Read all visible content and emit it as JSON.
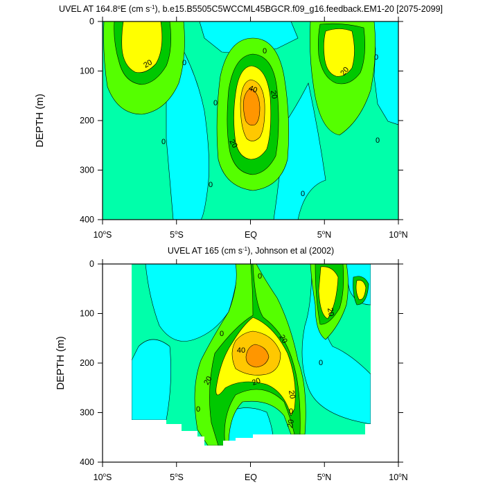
{
  "colors": {
    "lt0": "#00ffff",
    "c0_10": "#00ffaa",
    "c10_20": "#55ff00",
    "c20_30": "#00c800",
    "c30_40": "#ffff00",
    "c40_50": "#ffc800",
    "c50_60": "#ff9600",
    "contour": "#000000"
  },
  "chart_data": [
    {
      "type": "heatmap",
      "title": "UVEL AT 164.8°E (cm s⁻¹), b.e15.B5505C5WCCML45BGCR.f09_g16.feedback.EM1-20 [2075-2099]",
      "title_parts": {
        "pre": "UVEL AT 164.8",
        "deg": "o",
        "mid": "E (cm s",
        "exp": "-1",
        "post": "), b.e15.B5505C5WCCML45BGCR.f09_g16.feedback.EM1-20 [2075-2099]"
      },
      "ylabel": "DEPTH (m)",
      "xlim": [
        -10,
        10
      ],
      "ylim": [
        0,
        400
      ],
      "y_inverted": true,
      "xticks": [
        {
          "value": -10,
          "num": "10",
          "deg": "o",
          "hem": "S"
        },
        {
          "value": -5,
          "num": "5",
          "deg": "o",
          "hem": "S"
        },
        {
          "value": 0,
          "num": "EQ",
          "deg": "",
          "hem": ""
        },
        {
          "value": 5,
          "num": "5",
          "deg": "o",
          "hem": "N"
        },
        {
          "value": 10,
          "num": "10",
          "deg": "o",
          "hem": "N"
        }
      ],
      "yticks": [
        "0",
        "100",
        "200",
        "300",
        "400"
      ],
      "contour_labels": [
        "20",
        "0",
        "0",
        "40",
        "20",
        "0",
        "20",
        "0",
        "0",
        "20",
        "0",
        "0",
        "0"
      ],
      "features": [
        {
          "type": "eastward core",
          "lat": -3.0,
          "depth": 50,
          "max_approx": 35
        },
        {
          "type": "eastward core (EUC)",
          "lat": 0.0,
          "depth": 165,
          "max_approx": 55
        },
        {
          "type": "eastward core",
          "lat": 6.0,
          "depth": 70,
          "max_approx": 35
        },
        {
          "type": "westward flow",
          "lat": 2.5,
          "depth": 20,
          "min_approx": -5
        }
      ]
    },
    {
      "type": "heatmap",
      "title": "UVEL AT 165 (cm s⁻¹), Johnson et al (2002)",
      "title_parts": {
        "pre": "UVEL AT 165 (cm s",
        "exp": "-1",
        "post": "), Johnson et al (2002)"
      },
      "ylabel": "DEPTH (m)",
      "xlim": [
        -10,
        10
      ],
      "ylim": [
        0,
        400
      ],
      "y_inverted": true,
      "data_extent": {
        "lat": [
          -8,
          8
        ],
        "depth": [
          10,
          350
        ]
      },
      "xticks": [
        {
          "value": -10,
          "num": "10",
          "deg": "o",
          "hem": "S"
        },
        {
          "value": -5,
          "num": "5",
          "deg": "o",
          "hem": "S"
        },
        {
          "value": 0,
          "num": "EQ",
          "deg": "",
          "hem": ""
        },
        {
          "value": 5,
          "num": "5",
          "deg": "o",
          "hem": "N"
        },
        {
          "value": 10,
          "num": "10",
          "deg": "o",
          "hem": "N"
        }
      ],
      "yticks": [
        "0",
        "100",
        "200",
        "300",
        "400"
      ],
      "contour_labels": [
        "0",
        "40",
        "20",
        "20",
        "20",
        "0",
        "20",
        "0",
        "0",
        "20",
        "0",
        "20"
      ],
      "features": [
        {
          "type": "eastward core (EUC)",
          "lat": -0.5,
          "depth": 190,
          "max_approx": 55
        },
        {
          "type": "eastward core",
          "lat": 5.0,
          "depth": 60,
          "max_approx": 30
        },
        {
          "type": "eastward core",
          "lat": 7.5,
          "depth": 60,
          "max_approx": 25
        }
      ]
    }
  ]
}
